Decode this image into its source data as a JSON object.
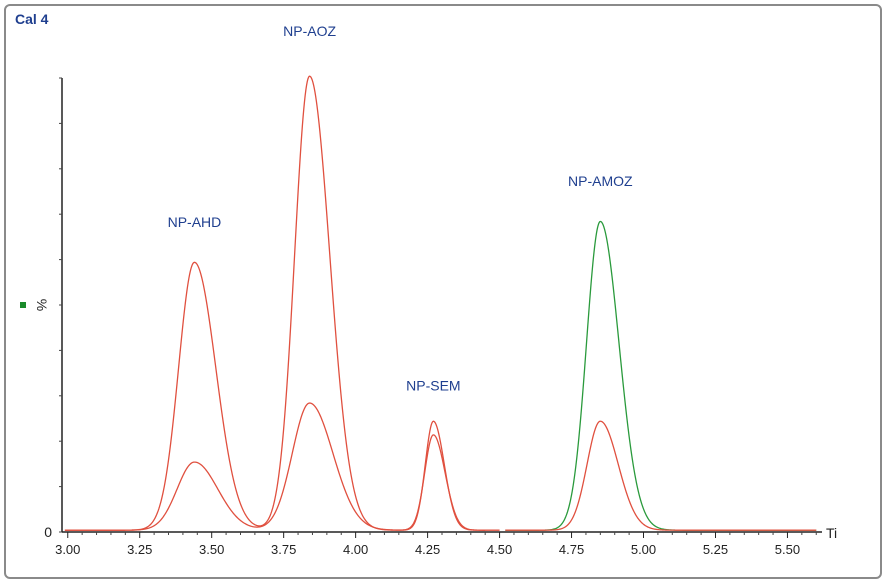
{
  "chart_data": {
    "type": "line",
    "title": "Cal 4",
    "ylabel": "%",
    "xlabel": "Ti",
    "y_zero_label": "0",
    "xlim": [
      2.98,
      5.62
    ],
    "ylim": [
      0,
      100
    ],
    "x_ticks": [
      "3.00",
      "3.25",
      "3.50",
      "3.75",
      "4.00",
      "4.25",
      "4.50",
      "4.75",
      "5.00",
      "5.25",
      "5.50"
    ],
    "peaks": [
      {
        "name": "NP-AHD",
        "rt": 3.44,
        "series": "red",
        "height": 59,
        "sigma": 0.055
      },
      {
        "name": "NP-AHD",
        "rt": 3.44,
        "series": "red2",
        "height": 15,
        "sigma": 0.06
      },
      {
        "name": "NP-AOZ",
        "rt": 3.84,
        "series": "red",
        "height": 100,
        "sigma": 0.052
      },
      {
        "name": "NP-AOZ",
        "rt": 3.84,
        "series": "red2",
        "height": 28,
        "sigma": 0.06
      },
      {
        "name": "NP-SEM",
        "rt": 4.27,
        "series": "red",
        "height": 24,
        "sigma": 0.028
      },
      {
        "name": "NP-SEM",
        "rt": 4.27,
        "series": "red2",
        "height": 21,
        "sigma": 0.03
      },
      {
        "name": "NP-AMOZ",
        "rt": 4.85,
        "series": "green",
        "height": 68,
        "sigma": 0.048
      },
      {
        "name": "NP-AMOZ",
        "rt": 4.85,
        "series": "red3",
        "height": 24,
        "sigma": 0.046
      }
    ],
    "labels": [
      {
        "text": "NP-AHD",
        "rt": 3.44,
        "y": 65
      },
      {
        "text": "NP-AOZ",
        "rt": 3.84,
        "y": 107
      },
      {
        "text": "NP-SEM",
        "rt": 4.27,
        "y": 29
      },
      {
        "text": "NP-AMOZ",
        "rt": 4.85,
        "y": 74
      }
    ],
    "colors": {
      "red": "#e0503f",
      "green": "#2a9a3c",
      "marker": "#1a8a2a"
    }
  }
}
